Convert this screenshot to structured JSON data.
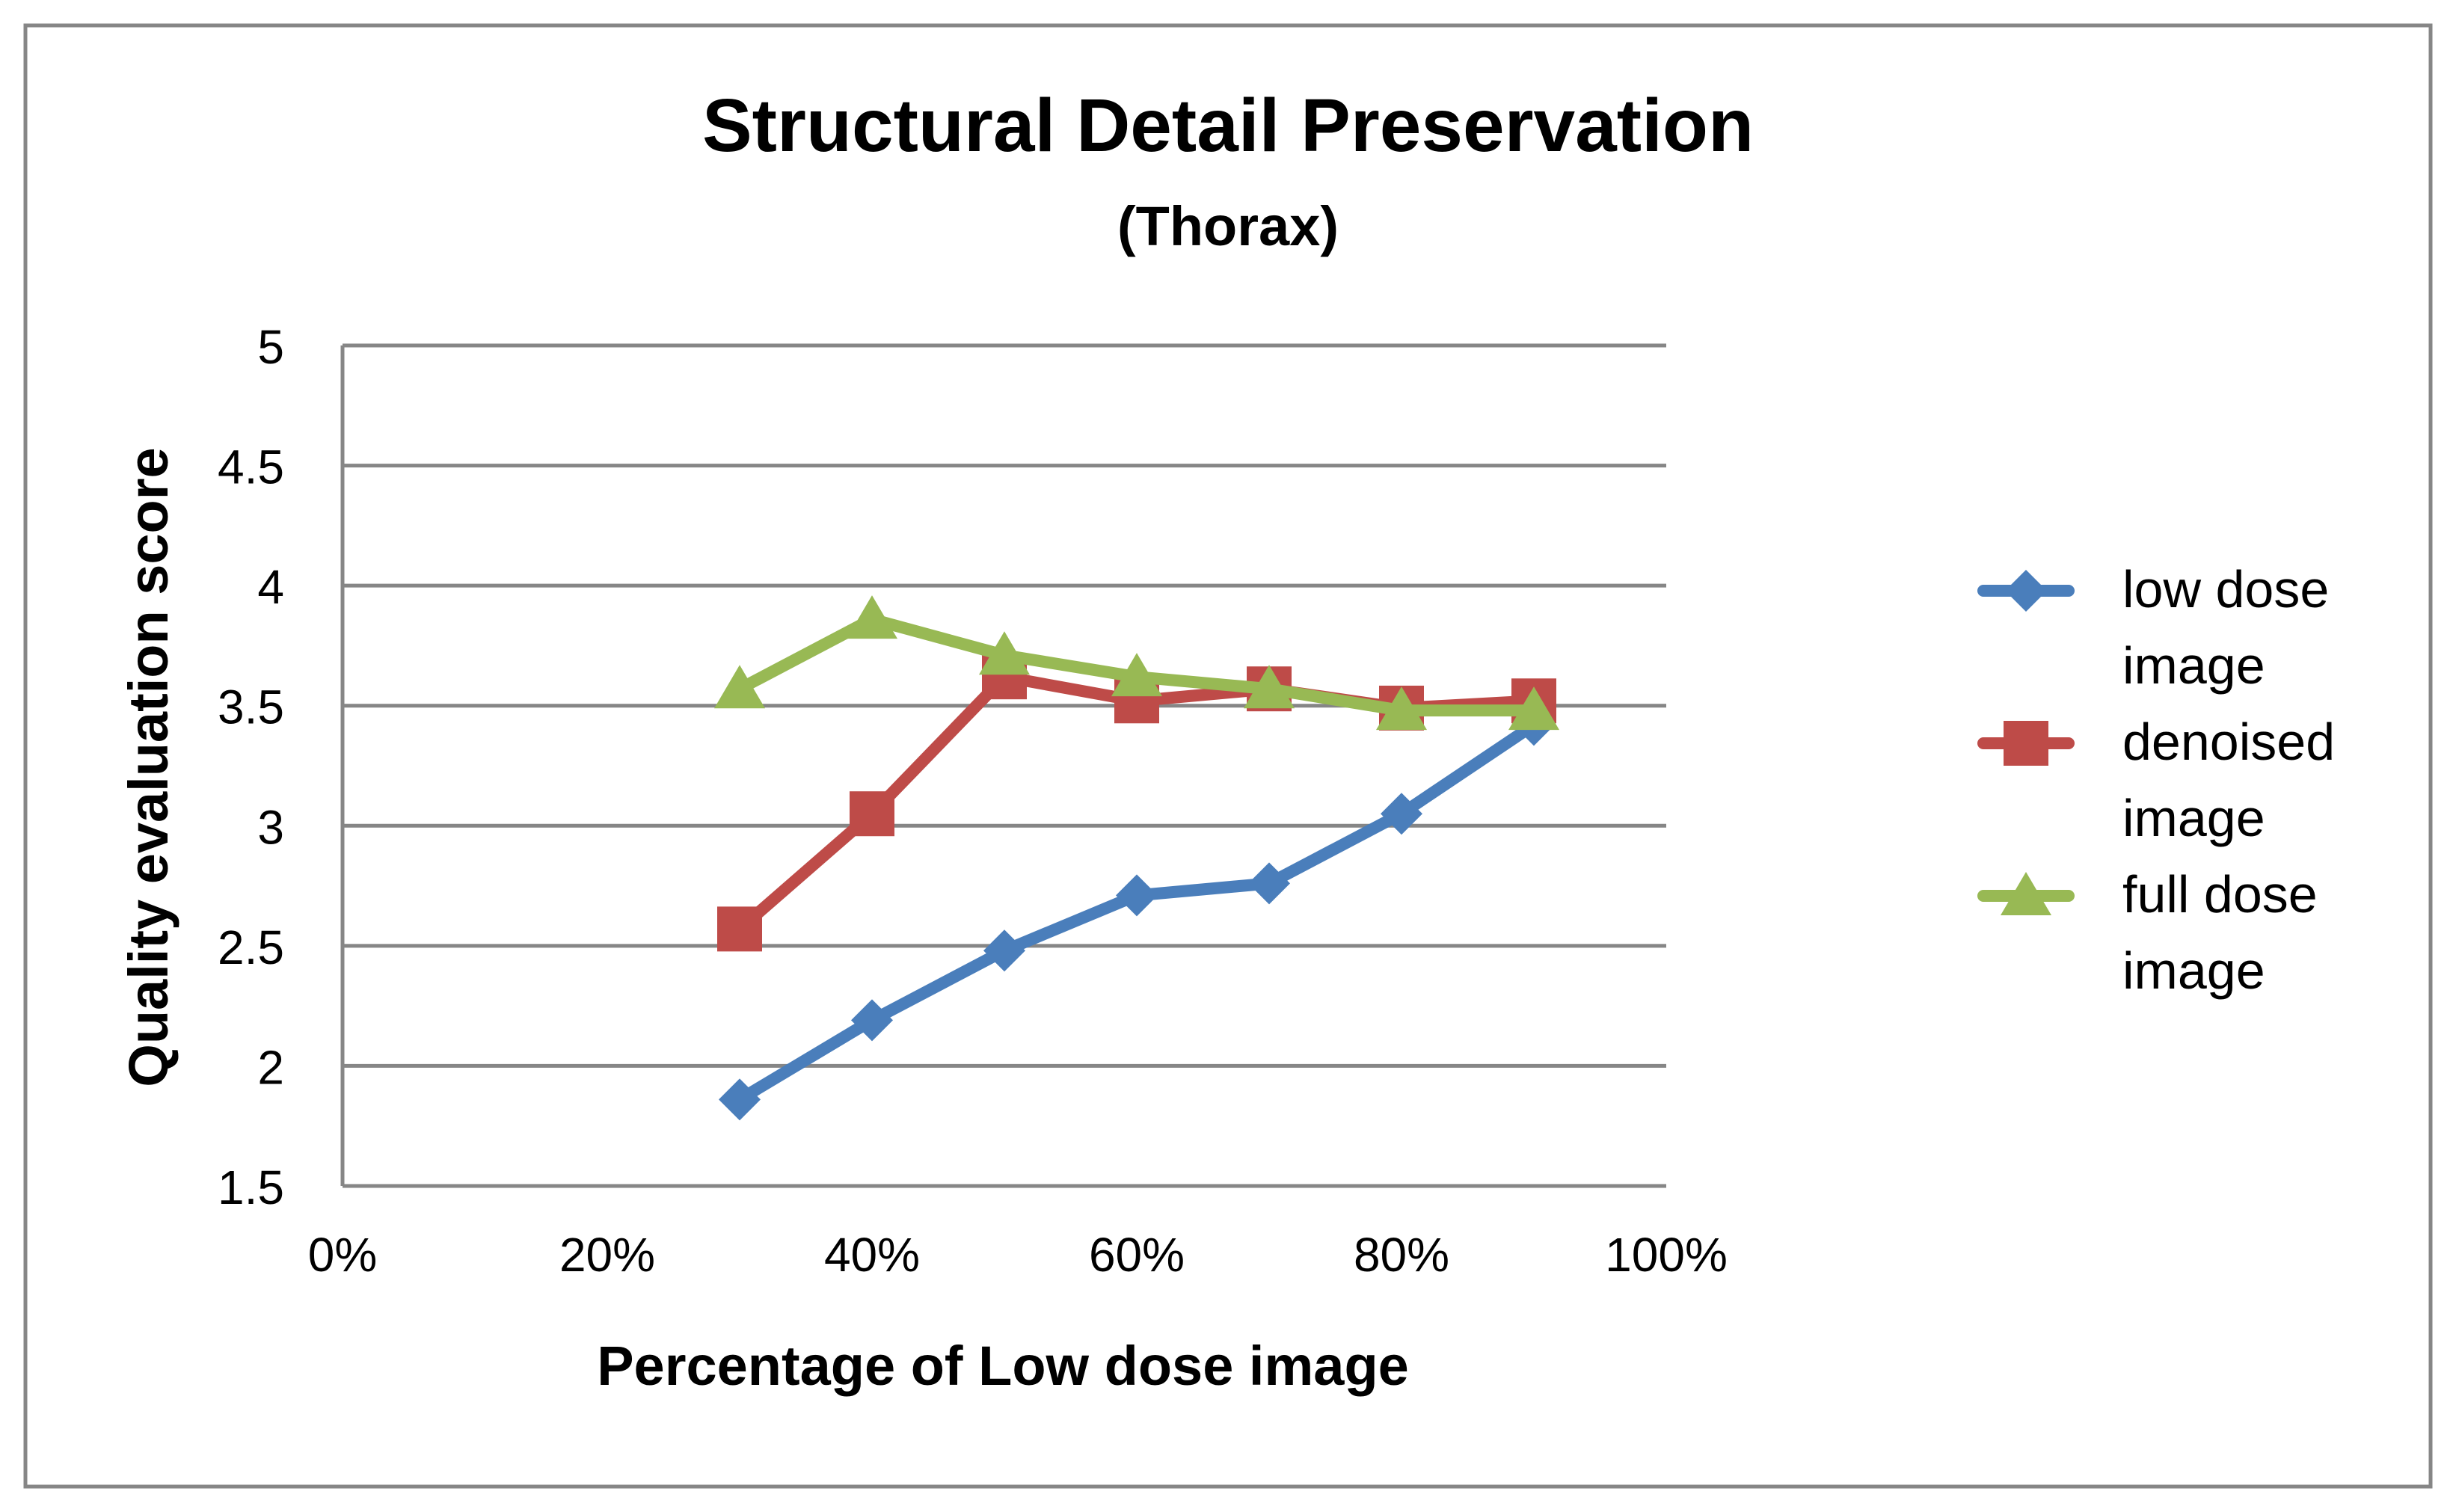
{
  "chart_data": {
    "type": "line",
    "title": "Structural Detail Preservation",
    "subtitle": "(Thorax)",
    "xlabel": "Percentage of Low dose image",
    "ylabel": "Quality evaluation score",
    "x_ticks": [
      "0%",
      "20%",
      "40%",
      "60%",
      "80%",
      "100%"
    ],
    "y_ticks": [
      "1.5",
      "2",
      "2.5",
      "3",
      "3.5",
      "4",
      "4.5",
      "5"
    ],
    "xlim": [
      0,
      100
    ],
    "ylim": [
      1.5,
      5
    ],
    "x": [
      30,
      40,
      50,
      60,
      70,
      80,
      90
    ],
    "series": [
      {
        "name": "low dose image",
        "legend_lines": [
          "low dose",
          "image"
        ],
        "color": "#4a7ebb",
        "marker": "diamond",
        "values": [
          1.86,
          2.19,
          2.48,
          2.71,
          2.76,
          3.05,
          3.42
        ]
      },
      {
        "name": "denoised image",
        "legend_lines": [
          "denoised",
          "image"
        ],
        "color": "#be4b48",
        "marker": "square",
        "values": [
          2.57,
          3.05,
          3.62,
          3.52,
          3.57,
          3.49,
          3.52
        ]
      },
      {
        "name": "full dose image",
        "legend_lines": [
          "full dose",
          "image"
        ],
        "color": "#98b954",
        "marker": "triangle",
        "values": [
          3.57,
          3.86,
          3.71,
          3.62,
          3.57,
          3.48,
          3.48
        ]
      }
    ],
    "grid": true,
    "legend": "right"
  }
}
